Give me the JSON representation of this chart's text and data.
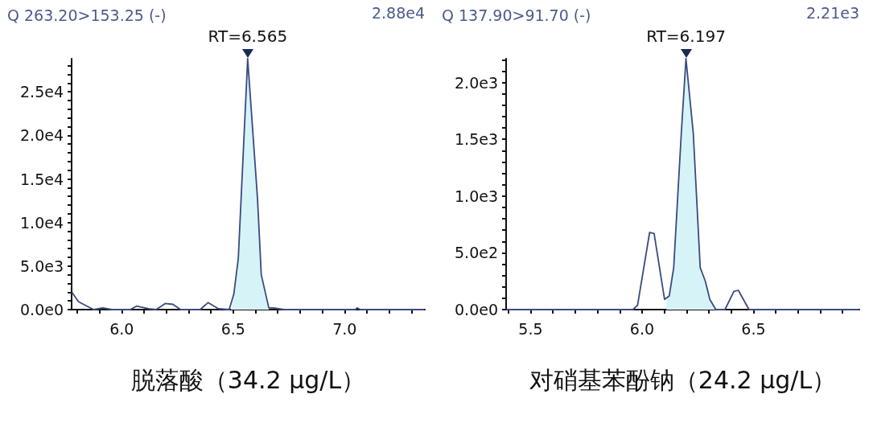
{
  "chart_data": [
    {
      "type": "line",
      "title": "Q 263.20>153.25 (-)",
      "xlabel": "脱落酸（34.2 μg/L）",
      "annotations": [
        "2.88e4",
        {
          "text": "RT=6.565",
          "x": 6.565,
          "y": 28800
        }
      ],
      "xlim": [
        5.775,
        7.36
      ],
      "ylim": [
        0,
        28800
      ],
      "xticks": [
        {
          "value": 5.8,
          "label": null
        },
        {
          "value": 5.9,
          "label": null
        },
        {
          "value": 6,
          "label": "6.0"
        },
        {
          "value": 6.1,
          "label": null
        },
        {
          "value": 6.2,
          "label": null
        },
        {
          "value": 6.3,
          "label": null
        },
        {
          "value": 6.4,
          "label": null
        },
        {
          "value": 6.5,
          "label": "6.5"
        },
        {
          "value": 6.6,
          "label": null
        },
        {
          "value": 6.7,
          "label": null
        },
        {
          "value": 6.8,
          "label": null
        },
        {
          "value": 6.9,
          "label": null
        },
        {
          "value": 7,
          "label": "7.0"
        },
        {
          "value": 7.1,
          "label": null
        },
        {
          "value": 7.2,
          "label": null
        },
        {
          "value": 7.3,
          "label": null
        }
      ],
      "yticks": [
        {
          "value": 0,
          "label": "0.0e0"
        },
        {
          "value": 1000,
          "label": null
        },
        {
          "value": 2000,
          "label": null
        },
        {
          "value": 3000,
          "label": null
        },
        {
          "value": 4000,
          "label": null
        },
        {
          "value": 5000,
          "label": "5.0e3"
        },
        {
          "value": 6000,
          "label": null
        },
        {
          "value": 7000,
          "label": null
        },
        {
          "value": 8000,
          "label": null
        },
        {
          "value": 9000,
          "label": null
        },
        {
          "value": 10000,
          "label": "1.0e4"
        },
        {
          "value": 11000,
          "label": null
        },
        {
          "value": 12000,
          "label": null
        },
        {
          "value": 13000,
          "label": null
        },
        {
          "value": 14000,
          "label": null
        },
        {
          "value": 15000,
          "label": "1.5e4"
        },
        {
          "value": 16000,
          "label": null
        },
        {
          "value": 17000,
          "label": null
        },
        {
          "value": 18000,
          "label": null
        },
        {
          "value": 19000,
          "label": null
        },
        {
          "value": 20000,
          "label": "2.0e4"
        },
        {
          "value": 21000,
          "label": null
        },
        {
          "value": 22000,
          "label": null
        },
        {
          "value": 23000,
          "label": null
        },
        {
          "value": 24000,
          "label": null
        },
        {
          "value": 25000,
          "label": "2.5e4"
        },
        {
          "value": 26000,
          "label": null
        },
        {
          "value": 27000,
          "label": null
        },
        {
          "value": 28000,
          "label": null
        }
      ],
      "grid": false,
      "marker": "none",
      "line_style": "solid",
      "series": [
        {
          "type": "area",
          "color": "#d6f4f8",
          "x": [
            6.49,
            6.503,
            6.523,
            6.565,
            6.609,
            6.626,
            6.66
          ],
          "values": [
            0,
            1800,
            5900,
            28800,
            12800,
            4000,
            200
          ]
        },
        {
          "type": "line",
          "color": "#3b4a82",
          "x": [
            5.776,
            5.806,
            5.874,
            5.915,
            5.956,
            6.038,
            6.066,
            6.12,
            6.154,
            6.195,
            6.23,
            6.264,
            6.352,
            6.387,
            6.434,
            6.482,
            6.503,
            6.523,
            6.565,
            6.609,
            6.626,
            6.66,
            6.68,
            6.728,
            7.049,
            7.056,
            7.07,
            7.357
          ],
          "values": [
            2000,
            900,
            0,
            200,
            0,
            0,
            400,
            100,
            0,
            700,
            600,
            0,
            0,
            800,
            100,
            0,
            1800,
            5900,
            28800,
            12800,
            4000,
            200,
            200,
            0,
            0,
            200,
            0,
            0
          ]
        }
      ]
    },
    {
      "type": "line",
      "title": "Q 137.90>91.70 (-)",
      "xlabel": "对硝基苯酚钠（24.2 μg/L）",
      "annotations": [
        "2.21e3",
        {
          "text": "RT=6.197",
          "x": 6.197,
          "y": 2210
        }
      ],
      "xlim": [
        5.39,
        6.975
      ],
      "ylim": [
        0,
        2210
      ],
      "xticks": [
        {
          "value": 5.4,
          "label": null
        },
        {
          "value": 5.5,
          "label": "5.5"
        },
        {
          "value": 5.6,
          "label": null
        },
        {
          "value": 5.7,
          "label": null
        },
        {
          "value": 5.8,
          "label": null
        },
        {
          "value": 5.9,
          "label": null
        },
        {
          "value": 6,
          "label": "6.0"
        },
        {
          "value": 6.1,
          "label": null
        },
        {
          "value": 6.2,
          "label": null
        },
        {
          "value": 6.3,
          "label": null
        },
        {
          "value": 6.4,
          "label": null
        },
        {
          "value": 6.5,
          "label": "6.5"
        },
        {
          "value": 6.6,
          "label": null
        },
        {
          "value": 6.7,
          "label": null
        },
        {
          "value": 6.8,
          "label": null
        },
        {
          "value": 6.9,
          "label": null
        }
      ],
      "yticks": [
        {
          "value": 0,
          "label": "0.0e0"
        },
        {
          "value": 100,
          "label": null
        },
        {
          "value": 200,
          "label": null
        },
        {
          "value": 300,
          "label": null
        },
        {
          "value": 400,
          "label": null
        },
        {
          "value": 500,
          "label": "5.0e2"
        },
        {
          "value": 600,
          "label": null
        },
        {
          "value": 700,
          "label": null
        },
        {
          "value": 800,
          "label": null
        },
        {
          "value": 900,
          "label": null
        },
        {
          "value": 1000,
          "label": "1.0e3"
        },
        {
          "value": 1100,
          "label": null
        },
        {
          "value": 1200,
          "label": null
        },
        {
          "value": 1300,
          "label": null
        },
        {
          "value": 1400,
          "label": null
        },
        {
          "value": 1500,
          "label": "1.5e3"
        },
        {
          "value": 1600,
          "label": null
        },
        {
          "value": 1700,
          "label": null
        },
        {
          "value": 1800,
          "label": null
        },
        {
          "value": 1900,
          "label": null
        },
        {
          "value": 2000,
          "label": "2.0e3"
        },
        {
          "value": 2100,
          "label": null
        },
        {
          "value": 2200,
          "label": null
        }
      ],
      "grid": false,
      "marker": "none",
      "line_style": "solid",
      "series": [
        {
          "type": "area",
          "color": "#d6f4f8",
          "x": [
            6.11,
            6.122,
            6.142,
            6.176,
            6.197,
            6.23,
            6.261,
            6.284,
            6.304,
            6.331
          ],
          "values": [
            100,
            120,
            370,
            1550,
            2210,
            1550,
            370,
            250,
            90,
            0
          ]
        },
        {
          "type": "line",
          "color": "#3b4a82",
          "x": [
            5.392,
            5.959,
            5.98,
            6.034,
            6.054,
            6.101,
            6.122,
            6.142,
            6.176,
            6.197,
            6.23,
            6.261,
            6.284,
            6.304,
            6.331,
            6.372,
            6.412,
            6.432,
            6.48,
            6.973
          ],
          "values": [
            0,
            0,
            40,
            680,
            670,
            90,
            120,
            370,
            1550,
            2210,
            1550,
            370,
            250,
            90,
            0,
            0,
            160,
            170,
            0,
            0
          ]
        }
      ]
    }
  ]
}
